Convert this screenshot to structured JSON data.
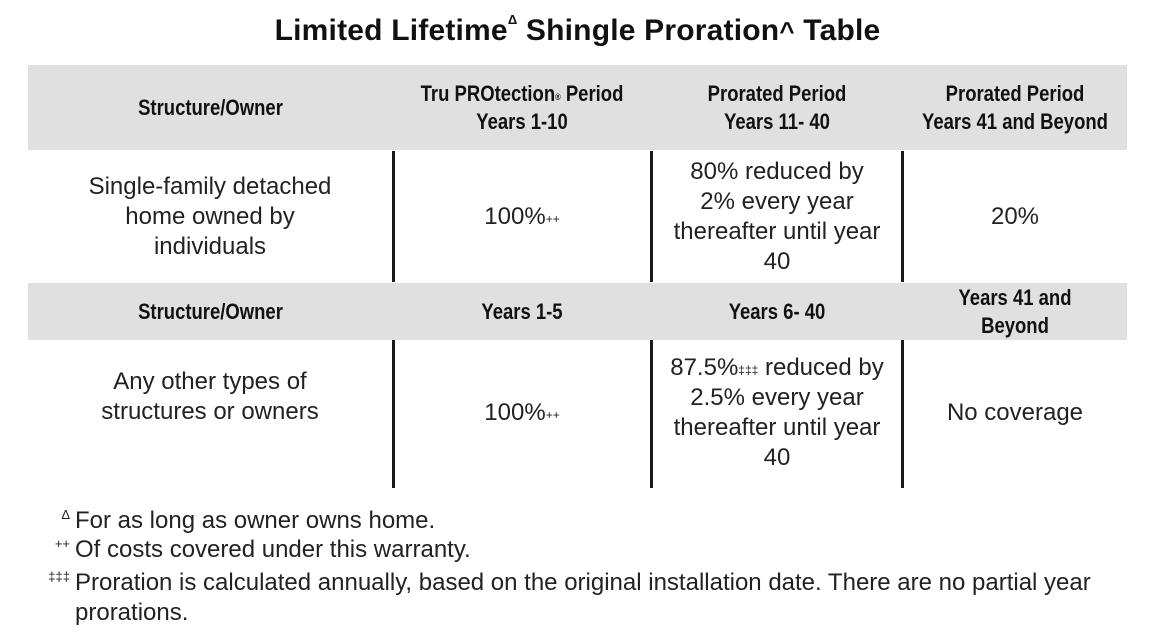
{
  "title": {
    "part1": "Limited Lifetime",
    "sup1": "Δ",
    "part2": " Shingle Proration",
    "sup2": "^",
    "part3": " Table"
  },
  "section1": {
    "headers": {
      "col1": "Structure/Owner",
      "col2_line1": "Tru PROtection",
      "col2_reg": "®",
      "col2_line1_end": " Period",
      "col2_line2": "Years 1-10",
      "col3_line1": "Prorated Period",
      "col3_line2": "Years 11- 40",
      "col4_line1": "Prorated Period",
      "col4_line2": "Years 41 and Beyond"
    },
    "row": {
      "owner": "Single-family detached home owned by individuals",
      "period1_value": "100%",
      "period1_sup": "++",
      "period2": "80% reduced by 2% every year thereafter until year 40",
      "period3": "20%"
    }
  },
  "section2": {
    "headers": {
      "col1": "Structure/Owner",
      "col2": "Years 1-5",
      "col3": "Years 6- 40",
      "col4": "Years 41 and Beyond"
    },
    "row": {
      "owner": "Any other types of structures or owners",
      "period1_value": "100%",
      "period1_sup": "++",
      "period2_value": "87.5%",
      "period2_sup": "‡‡‡",
      "period2_rest": " reduced by 2.5% every year thereafter until year 40",
      "period3": "No coverage"
    }
  },
  "footnotes": [
    {
      "symbol": "Δ",
      "text": "For as long as owner owns home."
    },
    {
      "symbol": "++",
      "text": "Of costs covered under this warranty."
    },
    {
      "symbol": "‡‡‡",
      "text": "Proration is calculated annually, based on the original installation date. There are no partial year prorations."
    }
  ]
}
